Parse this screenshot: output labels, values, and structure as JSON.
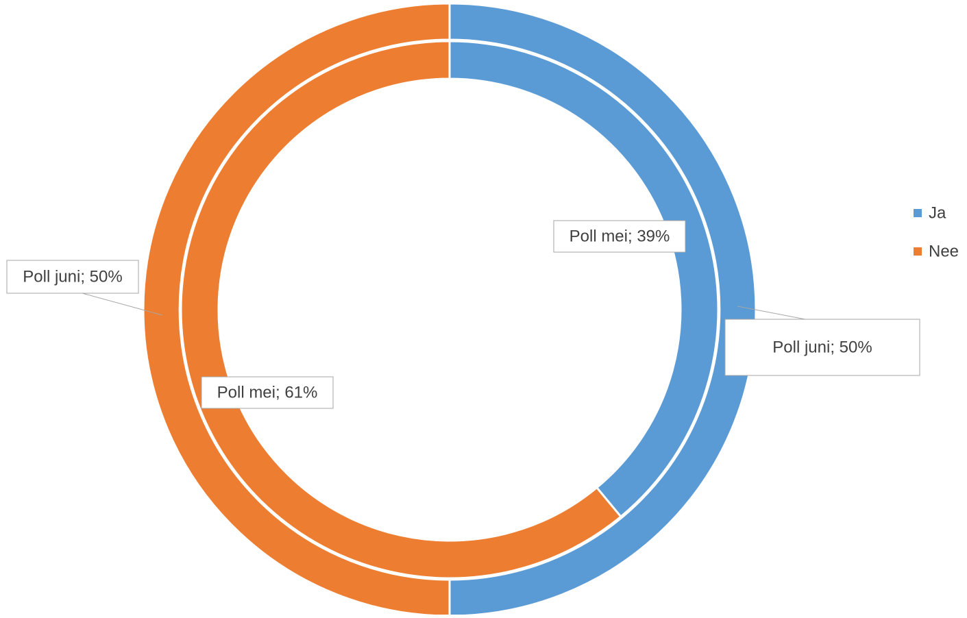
{
  "chart_data": {
    "type": "doughnut",
    "categories": [
      "Ja",
      "Nee"
    ],
    "colors": [
      "#5b9bd5",
      "#ed7d31"
    ],
    "series": [
      {
        "values": [
          39,
          61
        ],
        "value_labels": [
          "Poll mei; 39%",
          "Poll mei; 61%"
        ]
      },
      {
        "values": [
          50,
          50
        ],
        "value_labels": [
          "Poll juni; 50%",
          "Poll juni; 50%"
        ]
      }
    ],
    "legend": "right"
  }
}
